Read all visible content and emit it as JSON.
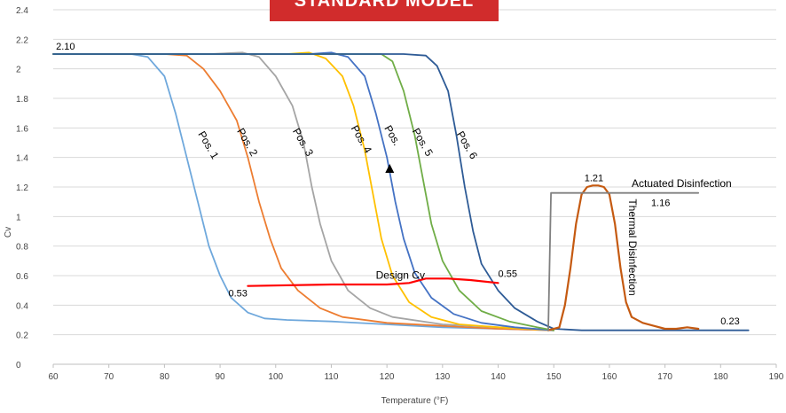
{
  "banner": {
    "text": "STANDARD MODEL"
  },
  "chart_data": {
    "type": "line",
    "title": "",
    "xlabel": "Temperature (°F)",
    "ylabel": "Cv",
    "xlim": [
      60,
      190
    ],
    "ylim": [
      0,
      2.4
    ],
    "xticks": [
      60,
      70,
      80,
      90,
      100,
      110,
      120,
      130,
      140,
      150,
      160,
      170,
      180,
      190
    ],
    "yticks": [
      0,
      0.2,
      0.4,
      0.6,
      0.8,
      1,
      1.2,
      1.4,
      1.6,
      1.8,
      2,
      2.2,
      2.4
    ],
    "grid": true,
    "legend": "none",
    "series": [
      {
        "name": "Pos. 1",
        "color": "#6fa8dc",
        "points": [
          [
            60,
            2.1
          ],
          [
            74,
            2.1
          ],
          [
            77,
            2.08
          ],
          [
            80,
            1.95
          ],
          [
            82,
            1.7
          ],
          [
            84,
            1.4
          ],
          [
            86,
            1.1
          ],
          [
            88,
            0.8
          ],
          [
            90,
            0.6
          ],
          [
            92,
            0.45
          ],
          [
            95,
            0.35
          ],
          [
            98,
            0.31
          ],
          [
            102,
            0.3
          ],
          [
            110,
            0.29
          ],
          [
            120,
            0.27
          ],
          [
            130,
            0.25
          ],
          [
            140,
            0.24
          ],
          [
            150,
            0.23
          ]
        ]
      },
      {
        "name": "Pos. 2",
        "color": "#ed7d31",
        "points": [
          [
            60,
            2.1
          ],
          [
            80,
            2.1
          ],
          [
            84,
            2.09
          ],
          [
            87,
            2.0
          ],
          [
            90,
            1.85
          ],
          [
            93,
            1.65
          ],
          [
            95,
            1.4
          ],
          [
            97,
            1.1
          ],
          [
            99,
            0.85
          ],
          [
            101,
            0.65
          ],
          [
            104,
            0.5
          ],
          [
            108,
            0.38
          ],
          [
            112,
            0.32
          ],
          [
            120,
            0.28
          ],
          [
            130,
            0.26
          ],
          [
            140,
            0.24
          ],
          [
            150,
            0.23
          ]
        ]
      },
      {
        "name": "Pos. 3",
        "color": "#a5a5a5",
        "points": [
          [
            60,
            2.1
          ],
          [
            88,
            2.1
          ],
          [
            94,
            2.11
          ],
          [
            97,
            2.08
          ],
          [
            100,
            1.95
          ],
          [
            103,
            1.75
          ],
          [
            105,
            1.5
          ],
          [
            106.5,
            1.2
          ],
          [
            108,
            0.95
          ],
          [
            110,
            0.7
          ],
          [
            113,
            0.5
          ],
          [
            117,
            0.38
          ],
          [
            121,
            0.32
          ],
          [
            130,
            0.27
          ],
          [
            140,
            0.25
          ],
          [
            150,
            0.23
          ]
        ]
      },
      {
        "name": "Pos. 4",
        "color": "#ffc000",
        "points": [
          [
            60,
            2.1
          ],
          [
            102,
            2.1
          ],
          [
            106,
            2.11
          ],
          [
            109,
            2.07
          ],
          [
            112,
            1.95
          ],
          [
            114,
            1.75
          ],
          [
            116,
            1.45
          ],
          [
            117.5,
            1.15
          ],
          [
            119,
            0.85
          ],
          [
            121,
            0.6
          ],
          [
            124,
            0.42
          ],
          [
            128,
            0.32
          ],
          [
            133,
            0.27
          ],
          [
            140,
            0.25
          ],
          [
            150,
            0.23
          ]
        ]
      },
      {
        "name": "Pos. 5",
        "color": "#4472c4",
        "points": [
          [
            60,
            2.1
          ],
          [
            106,
            2.1
          ],
          [
            110,
            2.11
          ],
          [
            113,
            2.08
          ],
          [
            116,
            1.95
          ],
          [
            118,
            1.7
          ],
          [
            120,
            1.4
          ],
          [
            121.5,
            1.1
          ],
          [
            123,
            0.85
          ],
          [
            125,
            0.62
          ],
          [
            128,
            0.45
          ],
          [
            132,
            0.34
          ],
          [
            137,
            0.28
          ],
          [
            143,
            0.25
          ],
          [
            150,
            0.23
          ]
        ]
      },
      {
        "name": "",
        "color": "#70ad47",
        "points": [
          [
            60,
            2.1
          ],
          [
            115,
            2.1
          ],
          [
            119,
            2.1
          ],
          [
            121,
            2.05
          ],
          [
            123,
            1.85
          ],
          [
            125,
            1.55
          ],
          [
            126.5,
            1.25
          ],
          [
            128,
            0.95
          ],
          [
            130,
            0.7
          ],
          [
            133,
            0.5
          ],
          [
            137,
            0.36
          ],
          [
            142,
            0.29
          ],
          [
            147,
            0.25
          ],
          [
            150,
            0.23
          ]
        ]
      },
      {
        "name": "Pos. 6",
        "color": "#2e5b96",
        "points": [
          [
            60,
            2.1
          ],
          [
            123,
            2.1
          ],
          [
            127,
            2.09
          ],
          [
            129,
            2.02
          ],
          [
            131,
            1.85
          ],
          [
            132.5,
            1.55
          ],
          [
            134,
            1.2
          ],
          [
            135.5,
            0.9
          ],
          [
            137,
            0.68
          ],
          [
            140,
            0.5
          ],
          [
            143,
            0.38
          ],
          [
            147,
            0.29
          ],
          [
            150,
            0.24
          ],
          [
            155,
            0.23
          ],
          [
            185,
            0.23
          ]
        ]
      },
      {
        "name": "Design Cv",
        "color": "#ff0000",
        "points": [
          [
            95,
            0.53
          ],
          [
            110,
            0.54
          ],
          [
            120,
            0.54
          ],
          [
            124,
            0.55
          ],
          [
            127,
            0.58
          ],
          [
            131,
            0.58
          ],
          [
            135,
            0.57
          ],
          [
            140,
            0.55
          ]
        ]
      },
      {
        "name": "Thermal Disinfection",
        "color": "#c55a11",
        "points": [
          [
            149,
            0.23
          ],
          [
            151,
            0.25
          ],
          [
            152,
            0.4
          ],
          [
            153,
            0.65
          ],
          [
            154,
            0.95
          ],
          [
            155,
            1.15
          ],
          [
            156,
            1.2
          ],
          [
            157,
            1.21
          ],
          [
            158,
            1.21
          ],
          [
            159,
            1.2
          ],
          [
            160,
            1.15
          ],
          [
            161,
            0.95
          ],
          [
            162,
            0.65
          ],
          [
            163,
            0.42
          ],
          [
            164,
            0.32
          ],
          [
            166,
            0.28
          ],
          [
            168,
            0.26
          ],
          [
            170,
            0.24
          ],
          [
            172,
            0.24
          ],
          [
            174,
            0.25
          ],
          [
            176,
            0.24
          ]
        ]
      },
      {
        "name": "Actuated Disinfection",
        "color": "#808080",
        "points": [
          [
            149,
            0.23
          ],
          [
            149.5,
            1.16
          ],
          [
            176,
            1.16
          ]
        ]
      }
    ],
    "annotations": [
      {
        "text": "2.10",
        "x": 60.5,
        "y": 2.13,
        "size": 11
      },
      {
        "text": "0.53",
        "x": 91.5,
        "y": 0.46,
        "size": 11
      },
      {
        "text": "0.55",
        "x": 140,
        "y": 0.59,
        "size": 11
      },
      {
        "text": "1.21",
        "x": 155.5,
        "y": 1.24,
        "size": 11
      },
      {
        "text": "1.16",
        "x": 167.5,
        "y": 1.07,
        "size": 11
      },
      {
        "text": "0.23",
        "x": 180,
        "y": 0.27,
        "size": 11
      },
      {
        "text": "Actuated Disinfection",
        "x": 164,
        "y": 1.2,
        "size": 12
      },
      {
        "text": "Design Cv",
        "x": 118,
        "y": 0.58,
        "size": 12
      },
      {
        "text": "Pos. 1",
        "x": 86,
        "y": 1.56,
        "size": 12,
        "rotate": 60
      },
      {
        "text": "Pos. 2",
        "x": 93,
        "y": 1.58,
        "size": 12,
        "rotate": 60
      },
      {
        "text": "Pos. 3",
        "x": 103,
        "y": 1.58,
        "size": 12,
        "rotate": 60
      },
      {
        "text": "Pos. 4",
        "x": 113.5,
        "y": 1.6,
        "size": 12,
        "rotate": 60
      },
      {
        "text": "Pos.",
        "x": 119.5,
        "y": 1.6,
        "size": 12,
        "rotate": 60
      },
      {
        "text": "Pos. 5",
        "x": 124.5,
        "y": 1.58,
        "size": 12,
        "rotate": 60
      },
      {
        "text": "Pos. 6",
        "x": 132.5,
        "y": 1.56,
        "size": 12,
        "rotate": 60
      },
      {
        "text": "Thermal Disinfection",
        "x": 163.5,
        "y": 1.12,
        "size": 12,
        "rotate": 90
      }
    ],
    "markers": [
      {
        "shape": "triangle",
        "x": 120.5,
        "y": 1.32
      }
    ]
  }
}
